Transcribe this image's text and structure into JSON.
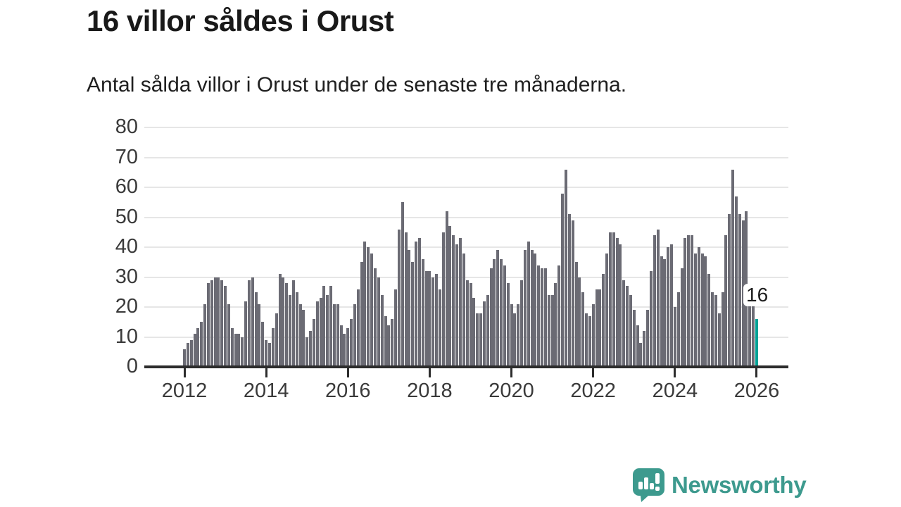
{
  "header": {
    "title": "16 villor såldes i Orust",
    "subtitle": "Antal sålda villor i Orust under de senaste tre månaderna."
  },
  "chart_data": {
    "type": "bar",
    "title": "16 villor såldes i Orust",
    "subtitle": "Antal sålda villor i Orust under de senaste tre månaderna.",
    "frequency": "monthly",
    "start": "2012-01",
    "end": "2026-01",
    "ylim": [
      0,
      80
    ],
    "y_ticks": [
      0,
      10,
      20,
      30,
      40,
      50,
      60,
      70,
      80
    ],
    "x_tick_labels": [
      "2012",
      "2014",
      "2016",
      "2018",
      "2020",
      "2022",
      "2024",
      "2026"
    ],
    "grid": "horizontal",
    "legend": "none",
    "values": [
      6,
      8,
      9,
      11,
      13,
      15,
      21,
      28,
      29,
      30,
      30,
      29,
      27,
      21,
      13,
      11,
      11,
      10,
      22,
      29,
      30,
      25,
      21,
      15,
      9,
      8,
      13,
      18,
      31,
      30,
      28,
      24,
      29,
      25,
      21,
      19,
      10,
      12,
      16,
      22,
      23,
      27,
      24,
      27,
      21,
      21,
      14,
      11,
      13,
      16,
      21,
      26,
      35,
      42,
      40,
      38,
      33,
      30,
      24,
      17,
      14,
      16,
      26,
      46,
      55,
      45,
      39,
      35,
      42,
      43,
      36,
      32,
      32,
      30,
      31,
      26,
      45,
      52,
      47,
      44,
      41,
      43,
      38,
      29,
      28,
      23,
      18,
      18,
      22,
      24,
      33,
      36,
      39,
      36,
      34,
      28,
      21,
      18,
      21,
      29,
      39,
      42,
      39,
      38,
      34,
      33,
      33,
      24,
      24,
      28,
      34,
      58,
      66,
      51,
      49,
      35,
      30,
      25,
      18,
      17,
      21,
      26,
      26,
      31,
      38,
      45,
      45,
      43,
      41,
      29,
      27,
      24,
      19,
      14,
      8,
      12,
      19,
      32,
      44,
      46,
      37,
      36,
      40,
      41,
      20,
      25,
      33,
      43,
      44,
      44,
      38,
      40,
      38,
      37,
      31,
      25,
      24,
      18,
      25,
      44,
      51,
      66,
      57,
      51,
      49,
      52,
      27,
      22,
      16
    ],
    "highlight": {
      "index": 168,
      "value": 16,
      "label": "16"
    }
  },
  "colors": {
    "bar": "#6b6b74",
    "highlight": "#00a296",
    "grid": "#e6e6e6",
    "axis": "#2d2d2d",
    "logo": "#3d9a8e"
  },
  "branding": {
    "logo_text": "Newsworthy"
  }
}
